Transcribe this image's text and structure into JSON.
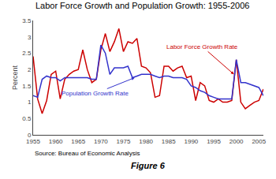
{
  "chart_data": {
    "type": "line",
    "title": "Labor Force Growth and Population Growth: 1955-2006",
    "ylabel": "Percent",
    "source": "Source: Bureau of Economic Analysis",
    "figure_label": "Figure 6",
    "x": [
      1955,
      1956,
      1957,
      1958,
      1959,
      1960,
      1961,
      1962,
      1963,
      1964,
      1965,
      1966,
      1967,
      1968,
      1969,
      1970,
      1971,
      1972,
      1973,
      1974,
      1975,
      1976,
      1977,
      1978,
      1979,
      1980,
      1981,
      1982,
      1983,
      1984,
      1985,
      1986,
      1987,
      1988,
      1989,
      1990,
      1991,
      1992,
      1993,
      1994,
      1995,
      1996,
      1997,
      1998,
      1999,
      2000,
      2001,
      2002,
      2003,
      2004,
      2005,
      2006
    ],
    "series": [
      {
        "color": "#cc0000",
        "values": [
          2.4,
          1.1,
          0.65,
          1.05,
          1.85,
          1.95,
          1.1,
          1.7,
          1.85,
          1.95,
          2.0,
          2.6,
          2.0,
          1.6,
          1.7,
          2.6,
          3.1,
          2.55,
          2.85,
          3.25,
          2.55,
          2.85,
          2.8,
          2.95,
          2.1,
          2.05,
          1.9,
          1.15,
          1.2,
          2.1,
          2.1,
          1.95,
          2.05,
          2.1,
          1.75,
          1.8,
          1.05,
          1.6,
          1.5,
          1.05,
          1.0,
          1.1,
          1.0,
          1.0,
          1.05,
          2.3,
          1.0,
          0.8,
          0.9,
          1.0,
          1.05,
          1.4
        ]
      },
      {
        "color": "#3333cc",
        "values": [
          1.2,
          1.15,
          1.7,
          1.8,
          1.75,
          1.75,
          1.65,
          1.75,
          1.75,
          1.75,
          1.75,
          1.75,
          1.75,
          1.7,
          1.7,
          2.75,
          2.5,
          1.85,
          2.05,
          2.05,
          2.05,
          2.1,
          1.75,
          1.8,
          1.85,
          1.85,
          1.85,
          1.8,
          1.75,
          1.8,
          1.8,
          1.75,
          1.75,
          1.75,
          1.7,
          1.5,
          1.45,
          1.35,
          1.3,
          1.2,
          1.15,
          1.1,
          1.1,
          1.1,
          1.1,
          2.3,
          1.6,
          1.6,
          1.55,
          1.5,
          1.45,
          1.2
        ]
      }
    ],
    "annotations": [
      {
        "text": "Population Growth Rate",
        "x": 1977.5,
        "y": 1.75,
        "color": "#3333cc"
      },
      {
        "text": "Labor Force Growth Rate",
        "x": 1999.5,
        "y": 1.85,
        "color": "#cc0000"
      }
    ],
    "xlim": [
      1955,
      2006
    ],
    "xticks": [
      1955,
      1960,
      1965,
      1970,
      1975,
      1980,
      1985,
      1990,
      1995,
      2000,
      2005
    ],
    "ylim": [
      0,
      3.5
    ],
    "yticks": [
      0,
      0.5,
      1,
      1.5,
      2,
      2.5,
      3,
      3.5
    ],
    "grid": false
  }
}
